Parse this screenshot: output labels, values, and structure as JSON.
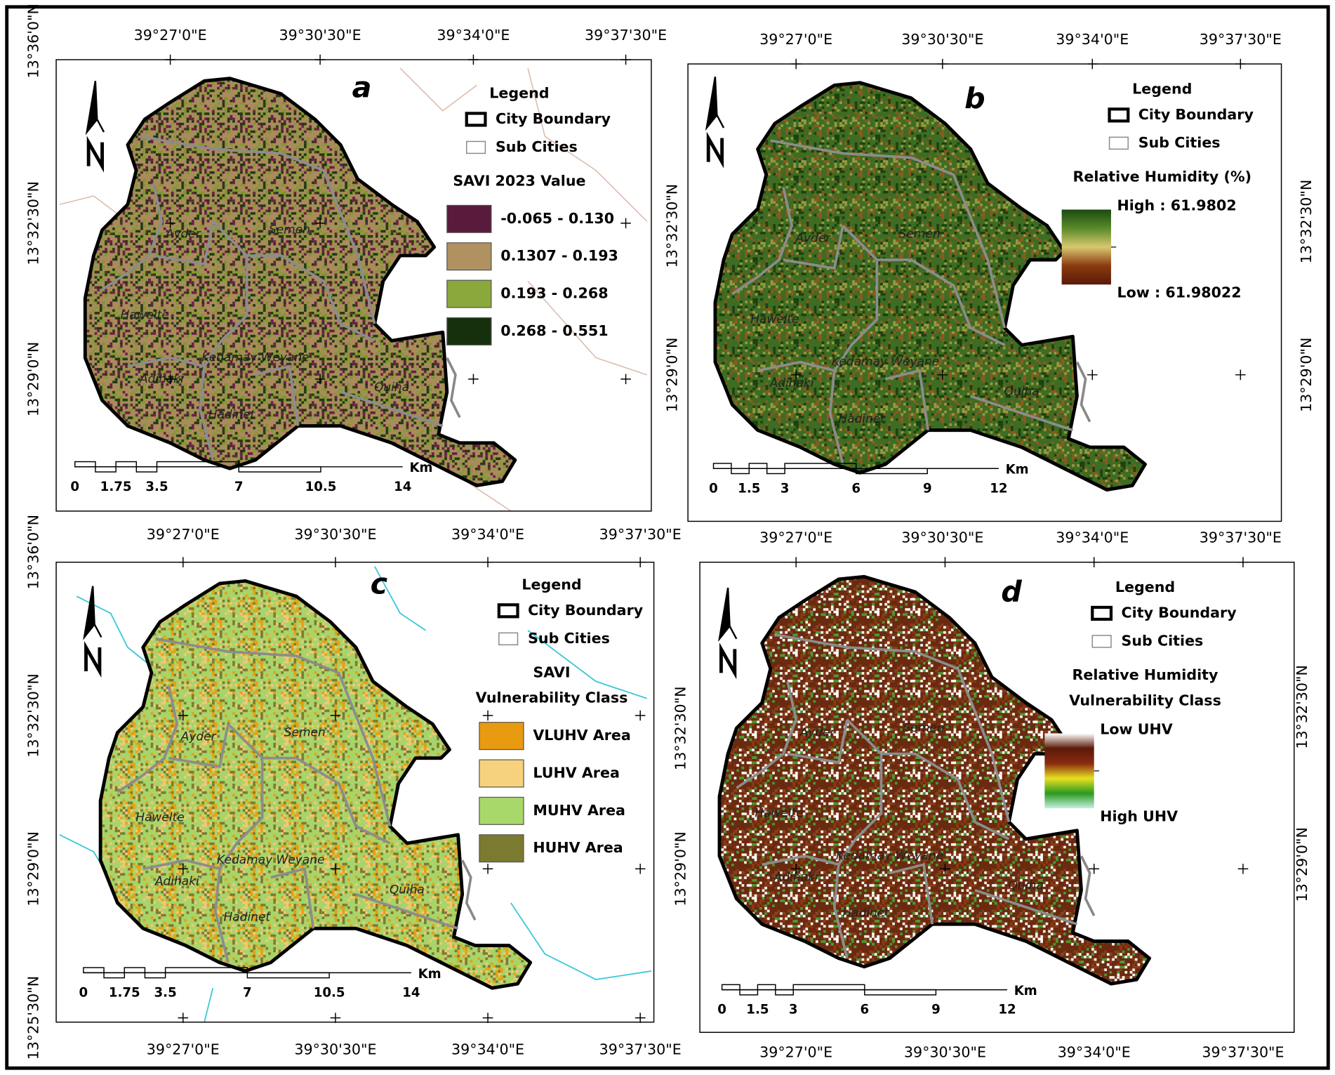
{
  "panels": [
    {
      "letter": "a",
      "x_top": [
        "39°27'0\"E",
        "39°30'30\"E",
        "39°34'0\"E",
        "39°37'30\"E"
      ],
      "y_left": [
        "13°36'0\"N",
        "13°32'30\"N",
        "13°29'0\"N"
      ],
      "texture": [
        "#a88c5a",
        "#6a1f45",
        "#7f9c2c",
        "#1e3a12"
      ],
      "places": [
        "Ayder",
        "Semen",
        "Hawelte",
        "Kedamay Weyane",
        "Adihaki",
        "Hadinet",
        "Quiha"
      ],
      "scale": {
        "labels": [
          "0",
          "1.75",
          "3.5",
          "7",
          "10.5",
          "14"
        ],
        "unit": "Km"
      },
      "legend": {
        "title": "Legend",
        "items": [
          "City Boundary",
          "Sub Cities"
        ],
        "class_title": [
          "SAVI 2023 Value"
        ],
        "classes": [
          {
            "label": "-0.065 - 0.130",
            "color": "#5a1a3c"
          },
          {
            "label": "0.1307 - 0.193",
            "color": "#b09260"
          },
          {
            "label": "0.193 - 0.268",
            "color": "#8aa83c"
          },
          {
            "label": "0.268 - 0.551",
            "color": "#16300e"
          }
        ]
      }
    },
    {
      "letter": "b",
      "x_top": [
        "39°27'0\"E",
        "39°30'30\"E",
        "39°34'0\"E",
        "39°37'30\"E"
      ],
      "x_bottom": [
        "39°27'0\"E",
        "39°30'30\"E",
        "39°34'0\"E",
        "39°37'30\"E"
      ],
      "y_left": [
        "13°32'30\"N",
        "13°29'0\"N"
      ],
      "y_right": [
        "13°32'30\"N",
        "13°29'0\"N"
      ],
      "texture": [
        "#3e6c22",
        "#8a5a20",
        "#1a4010",
        "#9a9a40"
      ],
      "places": [
        "Ayder",
        "Semen",
        "Hawelte",
        "Kedamay Weyane",
        "Adihaki",
        "Hadinet",
        "Quiha"
      ],
      "scale": {
        "labels": [
          "0",
          "1.5",
          "3",
          "6",
          "9",
          "12"
        ],
        "unit": "Km"
      },
      "legend": {
        "title": "Legend",
        "items": [
          "City Boundary",
          "Sub Cities"
        ],
        "class_title": [
          "Relative Humidity (%)"
        ],
        "gradient": {
          "colors": [
            "#1a4a10",
            "#5a8a2a",
            "#d8c870",
            "#8a3a10",
            "#5a1a08"
          ],
          "top_label": "High : 61.9802",
          "bottom_label": "Low : 61.98022"
        }
      }
    },
    {
      "letter": "c",
      "x_top": [
        "39°27'0\"E",
        "39°30'30\"E",
        "39°34'0\"E",
        "39°37'30\"E"
      ],
      "x_bottom": [
        "39°27'0\"E",
        "39°30'30\"E",
        "39°34'0\"E",
        "39°37'30\"E"
      ],
      "y_left": [
        "13°36'0\"N",
        "13°32'30\"N",
        "13°29'0\"N",
        "13°25'30\"N"
      ],
      "texture": [
        "#a8d46a",
        "#f2c878",
        "#7a7a30",
        "#e8a010"
      ],
      "places": [
        "Ayder",
        "Semen",
        "Hawelte",
        "Kedamay Weyane",
        "Adihaki",
        "Hadinet",
        "Quiha"
      ],
      "scale": {
        "labels": [
          "0",
          "1.75",
          "3.5",
          "7",
          "10.5",
          "14"
        ],
        "unit": "Km"
      },
      "legend": {
        "title": "Legend",
        "items": [
          "City Boundary",
          "Sub Cities"
        ],
        "class_title": [
          "SAVI",
          "Vulnerability Class"
        ],
        "classes": [
          {
            "label": "VLUHV Area",
            "color": "#e89a10"
          },
          {
            "label": "LUHV Area",
            "color": "#f7d27e"
          },
          {
            "label": "MUHV Area",
            "color": "#a8d86a"
          },
          {
            "label": "HUHV Area",
            "color": "#7a7a30"
          }
        ]
      }
    },
    {
      "letter": "d",
      "x_bottom": [
        "39°27'0\"E",
        "39°30'30\"E",
        "39°34'0\"E",
        "39°37'30\"E"
      ],
      "y_left": [
        "13°32'30\"N",
        "13°29'0\"N"
      ],
      "y_right": [
        "13°32'30\"N",
        "13°29'0\"N"
      ],
      "texture": [
        "#6a2a10",
        "#ffffff",
        "#4a9a30",
        "#8a3a14"
      ],
      "places": [
        "Ayder",
        "Semen",
        "Hawelte",
        "Kedamay Weyane",
        "Adihaki",
        "Hadinet",
        "Quiha"
      ],
      "scale": {
        "labels": [
          "0",
          "1.5",
          "3",
          "6",
          "9",
          "12"
        ],
        "unit": "Km"
      },
      "legend": {
        "title": "Legend",
        "items": [
          "City Boundary",
          "Sub Cities"
        ],
        "class_title": [
          "Relative Humidity",
          "Vulnerability Class"
        ],
        "gradient": {
          "colors": [
            "#ffffff",
            "#5a1a08",
            "#8a2a10",
            "#e8e020",
            "#2a9a20",
            "#c8f0e0"
          ],
          "top_label": "Low UHV",
          "bottom_label": "High UHV"
        }
      }
    }
  ]
}
